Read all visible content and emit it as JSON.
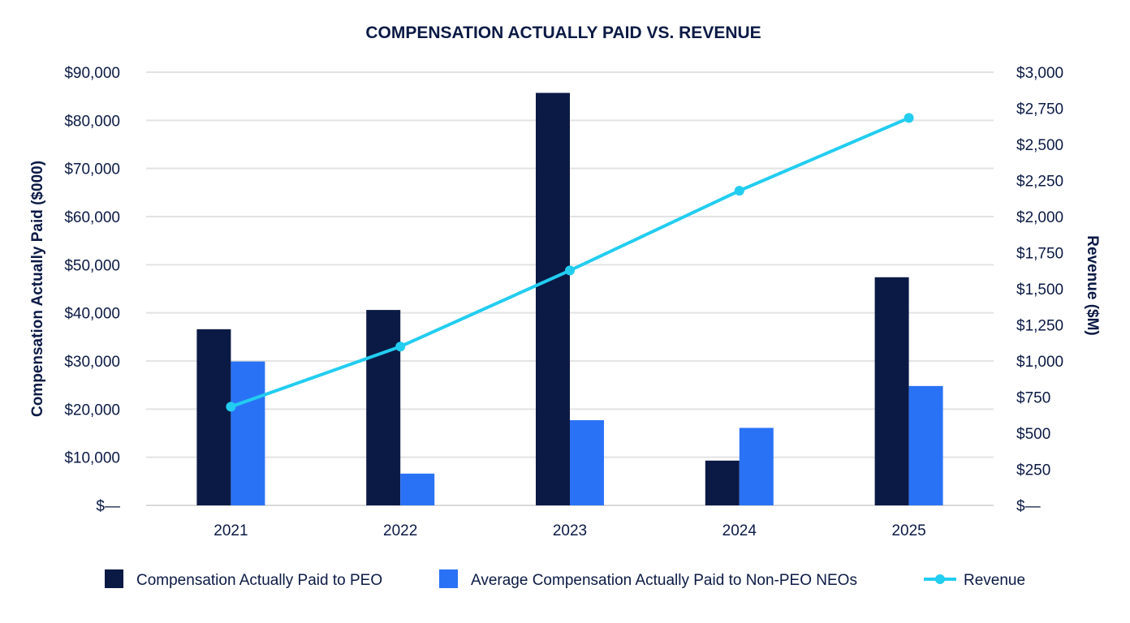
{
  "chart_data": {
    "type": "bar",
    "title": "COMPENSATION ACTUALLY PAID VS. REVENUE",
    "categories": [
      "2021",
      "2022",
      "2023",
      "2024",
      "2025"
    ],
    "ylabel": "Compensation Actually Paid ($000)",
    "y2label": "Revenue ($M)",
    "ylim": [
      0,
      90000
    ],
    "y2lim": [
      0,
      3000
    ],
    "y_ticks": [
      0,
      10000,
      20000,
      30000,
      40000,
      50000,
      60000,
      70000,
      80000,
      90000
    ],
    "y_tick_labels": [
      "$—",
      "$10,000",
      "$20,000",
      "$30,000",
      "$40,000",
      "$50,000",
      "$60,000",
      "$70,000",
      "$80,000",
      "$90,000"
    ],
    "y2_ticks": [
      0,
      250,
      500,
      750,
      1000,
      1250,
      1500,
      1750,
      2000,
      2250,
      2500,
      2750,
      3000
    ],
    "y2_tick_labels": [
      "$—",
      "$250",
      "$500",
      "$750",
      "$1,000",
      "$1,250",
      "$1,500",
      "$1,750",
      "$2,000",
      "$2,250",
      "$2,500",
      "$2,750",
      "$3,000"
    ],
    "grid": true,
    "legend_position": "bottom",
    "series": [
      {
        "name": "Compensation Actually Paid to PEO",
        "type": "bar",
        "axis": "left",
        "color": "#0b1a45",
        "values": [
          36600,
          40600,
          85700,
          9300,
          47400
        ]
      },
      {
        "name": "Average Compensation Actually Paid to Non-PEO NEOs",
        "type": "bar",
        "axis": "left",
        "color": "#2a72f5",
        "values": [
          29900,
          6600,
          17700,
          16100,
          24800
        ]
      },
      {
        "name": "Revenue",
        "type": "line",
        "axis": "right",
        "color": "#22cdf0",
        "values": [
          683,
          1100,
          1627,
          2179,
          2683
        ]
      }
    ]
  },
  "colors": {
    "text": "#0b1a45",
    "grid": "#e3e3e3",
    "axis": "#d9d9d9"
  }
}
